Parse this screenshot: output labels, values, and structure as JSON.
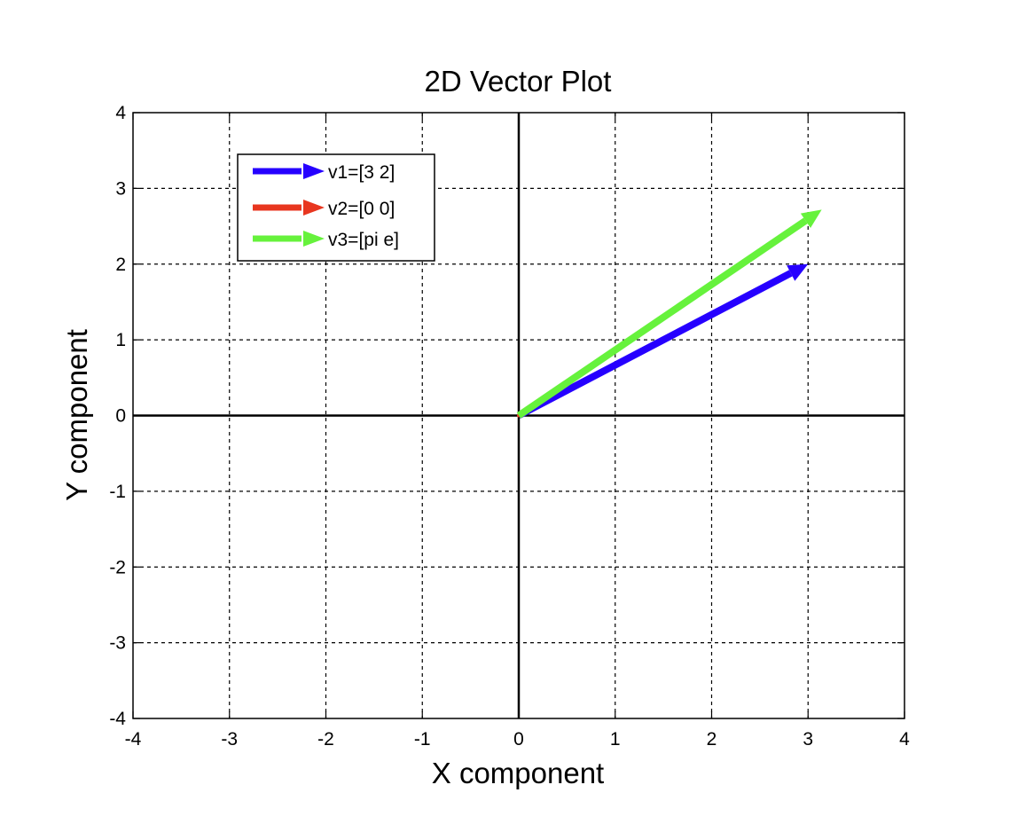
{
  "chart_data": {
    "type": "line",
    "title": "2D Vector Plot",
    "xlabel": "X component",
    "ylabel": "Y component",
    "xlim": [
      -4,
      4
    ],
    "ylim": [
      -4,
      4
    ],
    "xticks": [
      -4,
      -3,
      -2,
      -1,
      0,
      1,
      2,
      3,
      4
    ],
    "yticks": [
      -4,
      -3,
      -2,
      -1,
      0,
      1,
      2,
      3,
      4
    ],
    "grid": true,
    "grid_style": "dotted",
    "legend_position": "top-left",
    "series": [
      {
        "name": "v1=[3 2]",
        "color": "#2600ff",
        "start": [
          0,
          0
        ],
        "end": [
          3,
          2
        ]
      },
      {
        "name": "v2=[0 0]",
        "color": "#e8361f",
        "start": [
          0,
          0
        ],
        "end": [
          0,
          0
        ]
      },
      {
        "name": "v3=[pi e]",
        "color": "#66f23c",
        "start": [
          0,
          0
        ],
        "end": [
          3.1416,
          2.7183
        ]
      }
    ]
  }
}
